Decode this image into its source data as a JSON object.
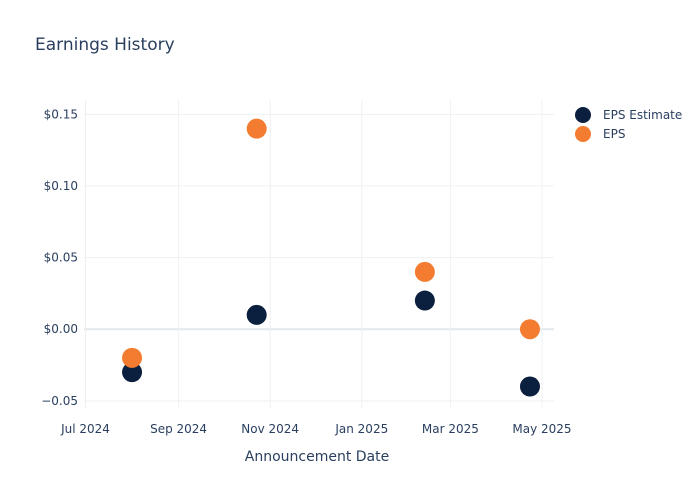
{
  "chart_data": {
    "type": "scatter",
    "title": "Earnings History",
    "xlabel": "Announcement Date",
    "ylabel": "",
    "x_ticks": [
      "Jul 2024",
      "Sep 2024",
      "Nov 2024",
      "Jan 2025",
      "Mar 2025",
      "May 2025"
    ],
    "y_ticks": [
      "$0.15",
      "$0.10",
      "$0.05",
      "$0.00",
      "−0.05"
    ],
    "y_tick_values": [
      0.15,
      0.1,
      0.05,
      0.0,
      -0.05
    ],
    "ylim": [
      -0.055,
      0.16
    ],
    "xlim": [
      "2024-06-30",
      "2025-05-09"
    ],
    "grid": true,
    "legend_position": "top-right",
    "series": [
      {
        "name": "EPS Estimate",
        "color": "#0b1f3f",
        "points": [
          {
            "x": "2024-08-01",
            "y": -0.03
          },
          {
            "x": "2024-10-23",
            "y": 0.01
          },
          {
            "x": "2025-02-12",
            "y": 0.02
          },
          {
            "x": "2025-04-23",
            "y": -0.04
          }
        ]
      },
      {
        "name": "EPS",
        "color": "#f47c30",
        "points": [
          {
            "x": "2024-08-01",
            "y": -0.02
          },
          {
            "x": "2024-10-23",
            "y": 0.14
          },
          {
            "x": "2025-02-12",
            "y": 0.04
          },
          {
            "x": "2025-04-23",
            "y": 0.0
          }
        ]
      }
    ]
  }
}
